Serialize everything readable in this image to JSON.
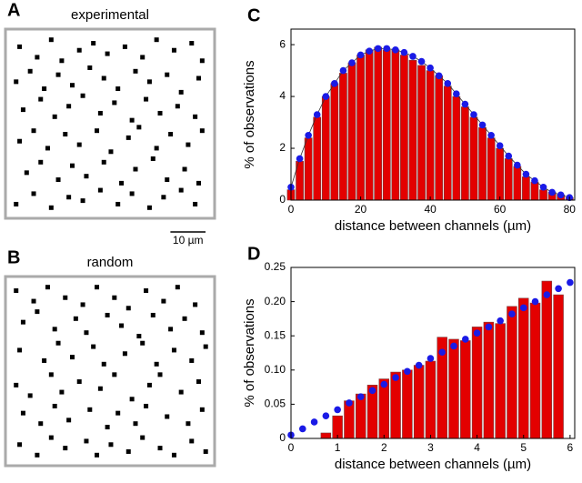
{
  "chart_data": [
    {
      "type": "scatter",
      "panel": "A",
      "title": "experimental",
      "color": "#000000",
      "xlim": [
        0,
        57.5
      ],
      "ylim": [
        0,
        52
      ],
      "x": [
        3,
        8,
        12,
        15,
        20,
        24,
        28,
        33,
        38,
        42,
        47,
        52,
        55,
        2,
        6,
        10,
        14,
        18,
        23,
        27,
        31,
        36,
        40,
        45,
        49,
        54,
        4,
        9,
        13,
        17,
        21,
        26,
        30,
        35,
        39,
        43,
        48,
        53,
        3,
        7,
        11,
        16,
        20,
        25,
        29,
        34,
        37,
        42,
        46,
        51,
        55,
        5,
        9,
        14,
        18,
        22,
        27,
        32,
        36,
        41,
        45,
        50,
        54,
        2,
        7,
        12,
        17,
        21,
        26,
        31,
        35,
        40,
        44,
        49,
        53
      ],
      "y": [
        48,
        45,
        50,
        44,
        47,
        49,
        46,
        48,
        45,
        50,
        47,
        49,
        44,
        38,
        41,
        36,
        40,
        37,
        42,
        39,
        36,
        41,
        38,
        40,
        35,
        39,
        30,
        33,
        28,
        31,
        34,
        29,
        32,
        27,
        33,
        29,
        31,
        28,
        21,
        24,
        19,
        23,
        20,
        24,
        18,
        22,
        25,
        19,
        23,
        20,
        24,
        12,
        15,
        10,
        14,
        11,
        15,
        9,
        13,
        16,
        10,
        13,
        9,
        3,
        6,
        2,
        5,
        4,
        7,
        3,
        6,
        2,
        5,
        7,
        3
      ],
      "scale_bar": {
        "length": 10,
        "label": "10 µm"
      }
    },
    {
      "type": "bar",
      "panel": "C",
      "xlabel": "distance between channels (µm)",
      "ylabel": "% of observations",
      "xlim": [
        0,
        81.5
      ],
      "ylim": [
        0,
        6.6
      ],
      "xticks": [
        0,
        20,
        40,
        60,
        80
      ],
      "yticks": [
        0,
        2,
        4,
        6
      ],
      "x": [
        0,
        2.5,
        5,
        7.5,
        10,
        12.5,
        15,
        17.5,
        20,
        22.5,
        25,
        27.5,
        30,
        32.5,
        35,
        37.5,
        40,
        42.5,
        45,
        47.5,
        50,
        52.5,
        55,
        57.5,
        60,
        62.5,
        65,
        67.5,
        70,
        72.5,
        75,
        77.5,
        80
      ],
      "series": [
        {
          "type": "bar",
          "color": "#e30000",
          "values": [
            0.4,
            1.5,
            2.4,
            3.2,
            4.0,
            4.5,
            4.9,
            5.3,
            5.6,
            5.8,
            5.9,
            5.8,
            5.8,
            5.6,
            5.4,
            5.2,
            5.0,
            4.8,
            4.4,
            4.0,
            3.6,
            3.2,
            2.8,
            2.4,
            2.0,
            1.6,
            1.3,
            0.9,
            0.7,
            0.4,
            0.3,
            0.2,
            0.1
          ]
        },
        {
          "type": "line",
          "color": "#1a1ae6",
          "values": [
            0.5,
            1.6,
            2.5,
            3.3,
            4.0,
            4.5,
            5.0,
            5.3,
            5.6,
            5.75,
            5.85,
            5.85,
            5.8,
            5.7,
            5.55,
            5.35,
            5.1,
            4.8,
            4.5,
            4.1,
            3.7,
            3.3,
            2.9,
            2.5,
            2.1,
            1.7,
            1.35,
            1.0,
            0.75,
            0.5,
            0.3,
            0.2,
            0.1
          ]
        }
      ]
    },
    {
      "type": "scatter",
      "panel": "B",
      "title": "random",
      "color": "#000000",
      "xlim": [
        0,
        57.5
      ],
      "ylim": [
        0,
        52
      ],
      "x": [
        2,
        7,
        11,
        16,
        21,
        25,
        30,
        34,
        39,
        44,
        48,
        53,
        4,
        8,
        13,
        19,
        22,
        28,
        32,
        37,
        41,
        46,
        50,
        55,
        3,
        10,
        14,
        18,
        24,
        27,
        33,
        38,
        42,
        47,
        52,
        56,
        2,
        6,
        12,
        15,
        20,
        26,
        30,
        35,
        40,
        43,
        49,
        54,
        4,
        9,
        13,
        17,
        23,
        28,
        31,
        36,
        39,
        45,
        51,
        55,
        3,
        8,
        12,
        16,
        22,
        25,
        29,
        34,
        38,
        43,
        47,
        52,
        56
      ],
      "y": [
        49,
        46,
        50,
        47,
        45,
        50,
        47,
        44,
        49,
        46,
        50,
        45,
        40,
        43,
        38,
        41,
        37,
        42,
        39,
        36,
        42,
        38,
        41,
        37,
        32,
        29,
        34,
        30,
        33,
        28,
        31,
        34,
        28,
        32,
        29,
        33,
        22,
        19,
        25,
        20,
        23,
        21,
        25,
        18,
        22,
        25,
        20,
        23,
        14,
        11,
        16,
        12,
        15,
        10,
        14,
        11,
        16,
        13,
        11,
        15,
        5,
        2,
        7,
        4,
        6,
        2,
        5,
        3,
        7,
        4,
        2,
        6,
        3
      ]
    },
    {
      "type": "bar",
      "panel": "D",
      "xlabel": "distance between channels (µm)",
      "ylabel": "% of observations",
      "xlim": [
        0,
        6.1
      ],
      "ylim": [
        0,
        0.25
      ],
      "xticks": [
        0,
        1,
        2,
        3,
        4,
        5,
        6
      ],
      "yticks": [
        0,
        0.05,
        {
          "value": 0.1,
          "label": "0.10"
        },
        0.15,
        {
          "value": 0.2,
          "label": "0.20"
        },
        0.25
      ],
      "x": [
        0,
        0.25,
        0.5,
        0.75,
        1,
        1.25,
        1.5,
        1.75,
        2,
        2.25,
        2.5,
        2.75,
        3,
        3.25,
        3.5,
        3.75,
        4,
        4.25,
        4.5,
        4.75,
        5,
        5.25,
        5.5,
        5.75,
        6
      ],
      "series": [
        {
          "type": "bar",
          "color": "#e30000",
          "values": [
            null,
            null,
            null,
            0.008,
            0.033,
            0.055,
            0.065,
            0.078,
            0.087,
            0.097,
            0.1,
            0.107,
            0.113,
            0.148,
            0.145,
            0.143,
            0.163,
            0.17,
            0.168,
            0.193,
            0.205,
            0.198,
            0.23,
            0.21,
            null
          ]
        },
        {
          "type": "scatter",
          "color": "#1a1ae6",
          "values": [
            0.005,
            0.014,
            0.024,
            0.033,
            0.042,
            0.052,
            0.061,
            0.07,
            0.079,
            0.089,
            0.098,
            0.107,
            0.117,
            0.126,
            0.135,
            0.145,
            0.154,
            0.163,
            0.172,
            0.182,
            0.191,
            0.2,
            0.21,
            0.219,
            0.228
          ]
        }
      ]
    }
  ]
}
